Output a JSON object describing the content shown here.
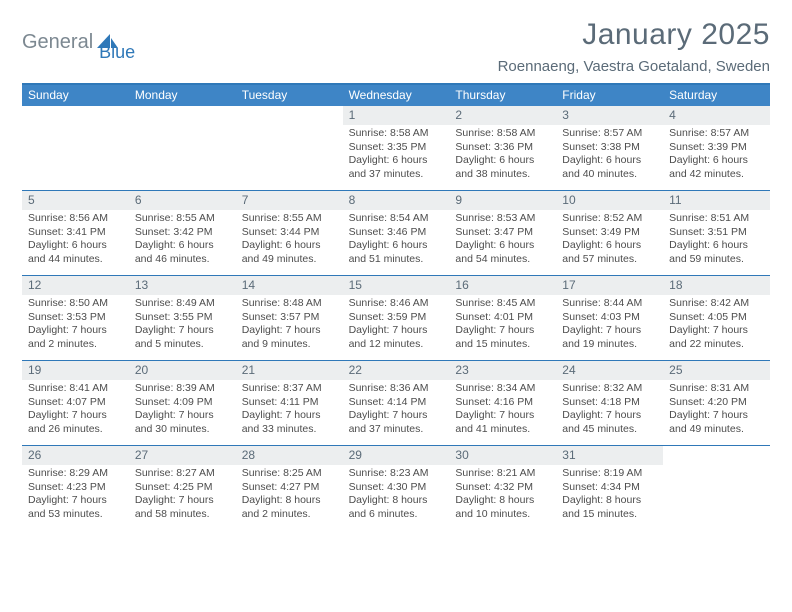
{
  "logo": {
    "word1": "General",
    "word2": "Blue",
    "text_color1": "#7c8891",
    "text_color2": "#2f78b8"
  },
  "title": "January 2025",
  "location": "Roennaeng, Vaestra Goetaland, Sweden",
  "colors": {
    "header_bar": "#3e85c6",
    "header_border": "#2f78b8",
    "daynum_bg": "#eceeef",
    "text_muted": "#5b6b78",
    "body_text": "#4d4d4d",
    "background": "#ffffff"
  },
  "fonts": {
    "title_size": 30,
    "location_size": 15,
    "dayhead_size": 12,
    "cell_size": 10.5
  },
  "day_headers": [
    "Sunday",
    "Monday",
    "Tuesday",
    "Wednesday",
    "Thursday",
    "Friday",
    "Saturday"
  ],
  "weeks": [
    [
      null,
      null,
      null,
      {
        "n": "1",
        "sunrise": "Sunrise: 8:58 AM",
        "sunset": "Sunset: 3:35 PM",
        "d1": "Daylight: 6 hours",
        "d2": "and 37 minutes."
      },
      {
        "n": "2",
        "sunrise": "Sunrise: 8:58 AM",
        "sunset": "Sunset: 3:36 PM",
        "d1": "Daylight: 6 hours",
        "d2": "and 38 minutes."
      },
      {
        "n": "3",
        "sunrise": "Sunrise: 8:57 AM",
        "sunset": "Sunset: 3:38 PM",
        "d1": "Daylight: 6 hours",
        "d2": "and 40 minutes."
      },
      {
        "n": "4",
        "sunrise": "Sunrise: 8:57 AM",
        "sunset": "Sunset: 3:39 PM",
        "d1": "Daylight: 6 hours",
        "d2": "and 42 minutes."
      }
    ],
    [
      {
        "n": "5",
        "sunrise": "Sunrise: 8:56 AM",
        "sunset": "Sunset: 3:41 PM",
        "d1": "Daylight: 6 hours",
        "d2": "and 44 minutes."
      },
      {
        "n": "6",
        "sunrise": "Sunrise: 8:55 AM",
        "sunset": "Sunset: 3:42 PM",
        "d1": "Daylight: 6 hours",
        "d2": "and 46 minutes."
      },
      {
        "n": "7",
        "sunrise": "Sunrise: 8:55 AM",
        "sunset": "Sunset: 3:44 PM",
        "d1": "Daylight: 6 hours",
        "d2": "and 49 minutes."
      },
      {
        "n": "8",
        "sunrise": "Sunrise: 8:54 AM",
        "sunset": "Sunset: 3:46 PM",
        "d1": "Daylight: 6 hours",
        "d2": "and 51 minutes."
      },
      {
        "n": "9",
        "sunrise": "Sunrise: 8:53 AM",
        "sunset": "Sunset: 3:47 PM",
        "d1": "Daylight: 6 hours",
        "d2": "and 54 minutes."
      },
      {
        "n": "10",
        "sunrise": "Sunrise: 8:52 AM",
        "sunset": "Sunset: 3:49 PM",
        "d1": "Daylight: 6 hours",
        "d2": "and 57 minutes."
      },
      {
        "n": "11",
        "sunrise": "Sunrise: 8:51 AM",
        "sunset": "Sunset: 3:51 PM",
        "d1": "Daylight: 6 hours",
        "d2": "and 59 minutes."
      }
    ],
    [
      {
        "n": "12",
        "sunrise": "Sunrise: 8:50 AM",
        "sunset": "Sunset: 3:53 PM",
        "d1": "Daylight: 7 hours",
        "d2": "and 2 minutes."
      },
      {
        "n": "13",
        "sunrise": "Sunrise: 8:49 AM",
        "sunset": "Sunset: 3:55 PM",
        "d1": "Daylight: 7 hours",
        "d2": "and 5 minutes."
      },
      {
        "n": "14",
        "sunrise": "Sunrise: 8:48 AM",
        "sunset": "Sunset: 3:57 PM",
        "d1": "Daylight: 7 hours",
        "d2": "and 9 minutes."
      },
      {
        "n": "15",
        "sunrise": "Sunrise: 8:46 AM",
        "sunset": "Sunset: 3:59 PM",
        "d1": "Daylight: 7 hours",
        "d2": "and 12 minutes."
      },
      {
        "n": "16",
        "sunrise": "Sunrise: 8:45 AM",
        "sunset": "Sunset: 4:01 PM",
        "d1": "Daylight: 7 hours",
        "d2": "and 15 minutes."
      },
      {
        "n": "17",
        "sunrise": "Sunrise: 8:44 AM",
        "sunset": "Sunset: 4:03 PM",
        "d1": "Daylight: 7 hours",
        "d2": "and 19 minutes."
      },
      {
        "n": "18",
        "sunrise": "Sunrise: 8:42 AM",
        "sunset": "Sunset: 4:05 PM",
        "d1": "Daylight: 7 hours",
        "d2": "and 22 minutes."
      }
    ],
    [
      {
        "n": "19",
        "sunrise": "Sunrise: 8:41 AM",
        "sunset": "Sunset: 4:07 PM",
        "d1": "Daylight: 7 hours",
        "d2": "and 26 minutes."
      },
      {
        "n": "20",
        "sunrise": "Sunrise: 8:39 AM",
        "sunset": "Sunset: 4:09 PM",
        "d1": "Daylight: 7 hours",
        "d2": "and 30 minutes."
      },
      {
        "n": "21",
        "sunrise": "Sunrise: 8:37 AM",
        "sunset": "Sunset: 4:11 PM",
        "d1": "Daylight: 7 hours",
        "d2": "and 33 minutes."
      },
      {
        "n": "22",
        "sunrise": "Sunrise: 8:36 AM",
        "sunset": "Sunset: 4:14 PM",
        "d1": "Daylight: 7 hours",
        "d2": "and 37 minutes."
      },
      {
        "n": "23",
        "sunrise": "Sunrise: 8:34 AM",
        "sunset": "Sunset: 4:16 PM",
        "d1": "Daylight: 7 hours",
        "d2": "and 41 minutes."
      },
      {
        "n": "24",
        "sunrise": "Sunrise: 8:32 AM",
        "sunset": "Sunset: 4:18 PM",
        "d1": "Daylight: 7 hours",
        "d2": "and 45 minutes."
      },
      {
        "n": "25",
        "sunrise": "Sunrise: 8:31 AM",
        "sunset": "Sunset: 4:20 PM",
        "d1": "Daylight: 7 hours",
        "d2": "and 49 minutes."
      }
    ],
    [
      {
        "n": "26",
        "sunrise": "Sunrise: 8:29 AM",
        "sunset": "Sunset: 4:23 PM",
        "d1": "Daylight: 7 hours",
        "d2": "and 53 minutes."
      },
      {
        "n": "27",
        "sunrise": "Sunrise: 8:27 AM",
        "sunset": "Sunset: 4:25 PM",
        "d1": "Daylight: 7 hours",
        "d2": "and 58 minutes."
      },
      {
        "n": "28",
        "sunrise": "Sunrise: 8:25 AM",
        "sunset": "Sunset: 4:27 PM",
        "d1": "Daylight: 8 hours",
        "d2": "and 2 minutes."
      },
      {
        "n": "29",
        "sunrise": "Sunrise: 8:23 AM",
        "sunset": "Sunset: 4:30 PM",
        "d1": "Daylight: 8 hours",
        "d2": "and 6 minutes."
      },
      {
        "n": "30",
        "sunrise": "Sunrise: 8:21 AM",
        "sunset": "Sunset: 4:32 PM",
        "d1": "Daylight: 8 hours",
        "d2": "and 10 minutes."
      },
      {
        "n": "31",
        "sunrise": "Sunrise: 8:19 AM",
        "sunset": "Sunset: 4:34 PM",
        "d1": "Daylight: 8 hours",
        "d2": "and 15 minutes."
      },
      null
    ]
  ]
}
